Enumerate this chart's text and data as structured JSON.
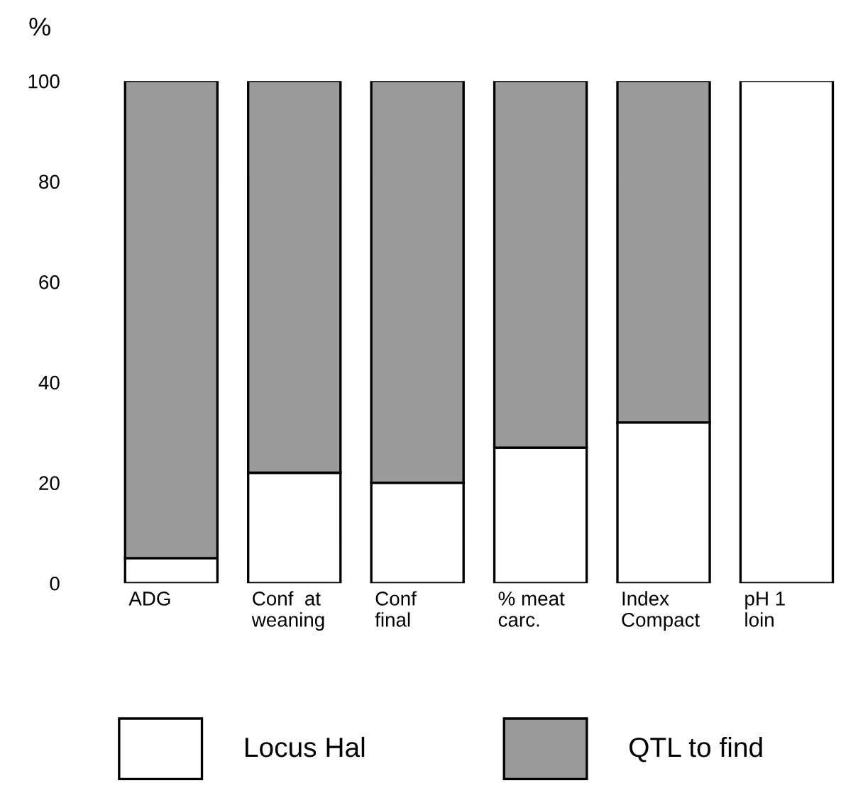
{
  "chart_data": {
    "type": "bar",
    "stacked": true,
    "ylabel": "%",
    "categories": [
      "ADG",
      "Conf  at\nweaning",
      "Conf\nfinal",
      "% meat\ncarc.",
      "Index\nCompact",
      "pH 1\nloin"
    ],
    "series": [
      {
        "name": "Locus Hal",
        "color": "#ffffff",
        "values": [
          5,
          22,
          20,
          27,
          32,
          100
        ]
      },
      {
        "name": "QTL to find",
        "color": "#9a9a9a",
        "values": [
          95,
          78,
          80,
          73,
          68,
          null
        ]
      }
    ],
    "ylim": [
      0,
      100
    ],
    "yticks": [
      0,
      20,
      40,
      60,
      80,
      100
    ],
    "grid": false,
    "legend": "bottom"
  }
}
